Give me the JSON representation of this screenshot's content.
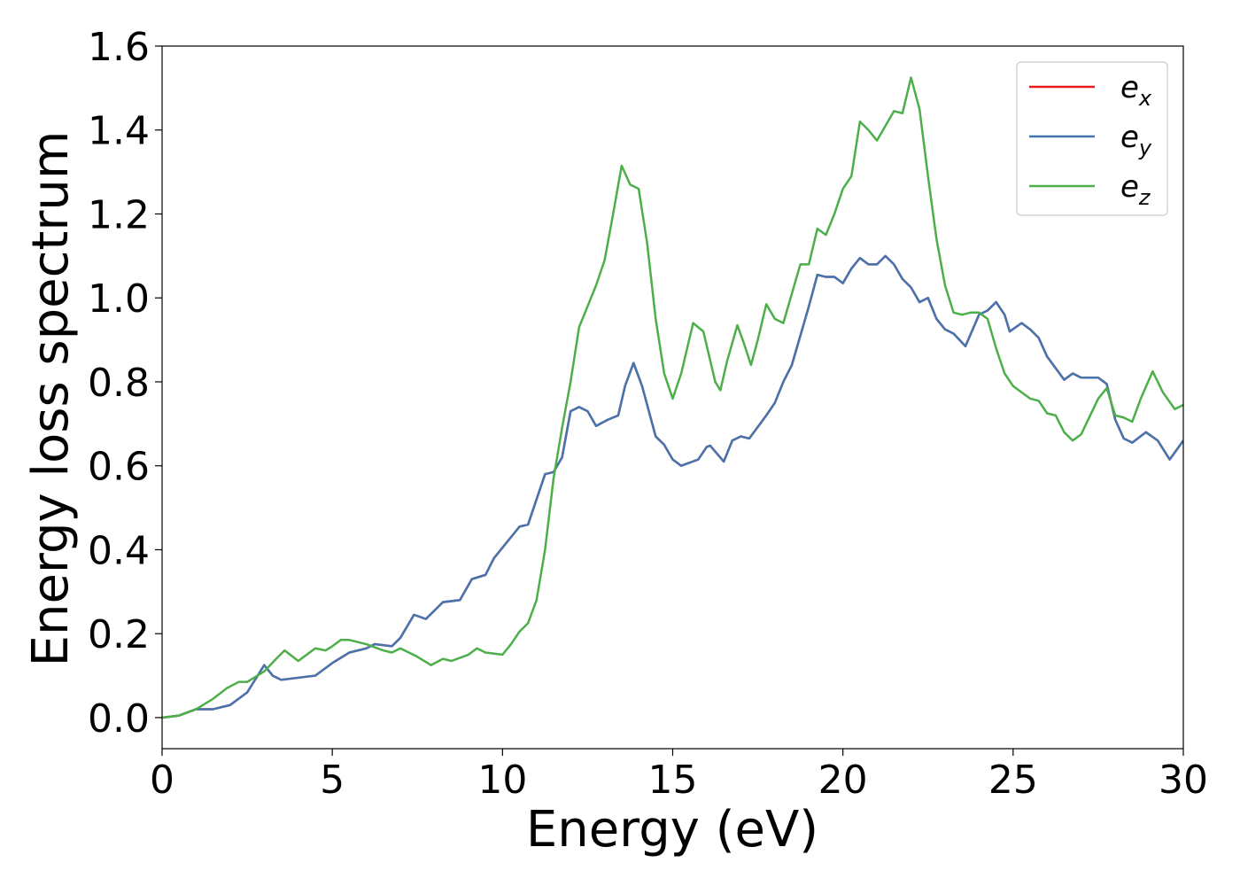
{
  "chart_data": {
    "type": "line",
    "xlabel": "Energy (eV)",
    "ylabel": "Energy loss spectrum",
    "xlim": [
      0,
      30
    ],
    "ylim": [
      -0.074,
      1.6
    ],
    "xticks": [
      0,
      5,
      10,
      15,
      20,
      25,
      30
    ],
    "yticks": [
      {
        "value": 0,
        "label": "0.0"
      },
      0.2,
      0.4,
      0.6,
      0.8,
      {
        "value": 1,
        "label": "1.0"
      },
      1.2,
      1.4,
      1.6
    ],
    "legend": "upper right",
    "series": [
      {
        "name": "e_x",
        "color": "#e41a1c",
        "x": [
          0,
          0.5,
          1,
          1.5,
          2,
          2.5,
          3,
          3.25,
          3.5,
          4,
          4.5,
          5,
          5.5,
          6,
          6.25,
          6.75,
          7,
          7.4,
          7.75,
          8.25,
          8.75,
          9.1,
          9.5,
          9.75,
          10.25,
          10.5,
          10.75,
          11.25,
          11.5,
          11.75,
          12,
          12.25,
          12.5,
          12.75,
          13.1,
          13.4,
          13.6,
          13.85,
          14.1,
          14.5,
          14.75,
          15,
          15.25,
          15.75,
          16,
          16.1,
          16.5,
          16.75,
          17,
          17.25,
          17.75,
          18,
          18.25,
          18.5,
          19,
          19.25,
          19.5,
          19.75,
          20,
          20.25,
          20.5,
          20.75,
          21,
          21.25,
          21.5,
          21.75,
          22,
          22.25,
          22.5,
          22.75,
          23,
          23.25,
          23.6,
          24,
          24.25,
          24.5,
          24.75,
          24.9,
          25.25,
          25.5,
          25.75,
          26,
          26.5,
          26.75,
          27,
          27.5,
          27.75,
          28,
          28.25,
          28.5,
          28.9,
          29.25,
          29.6,
          30
        ],
        "values": [
          0,
          0.005,
          0.02,
          0.02,
          0.03,
          0.06,
          0.125,
          0.1,
          0.09,
          0.095,
          0.1,
          0.13,
          0.155,
          0.165,
          0.175,
          0.17,
          0.19,
          0.245,
          0.235,
          0.275,
          0.28,
          0.33,
          0.34,
          0.38,
          0.43,
          0.455,
          0.46,
          0.58,
          0.585,
          0.62,
          0.73,
          0.74,
          0.73,
          0.695,
          0.71,
          0.72,
          0.79,
          0.845,
          0.79,
          0.67,
          0.65,
          0.615,
          0.6,
          0.615,
          0.645,
          0.648,
          0.61,
          0.66,
          0.67,
          0.665,
          0.72,
          0.75,
          0.8,
          0.84,
          0.98,
          1.055,
          1.05,
          1.05,
          1.035,
          1.07,
          1.095,
          1.08,
          1.08,
          1.1,
          1.08,
          1.045,
          1.025,
          0.99,
          1,
          0.95,
          0.925,
          0.915,
          0.885,
          0.96,
          0.97,
          0.99,
          0.96,
          0.92,
          0.94,
          0.925,
          0.905,
          0.86,
          0.805,
          0.82,
          0.81,
          0.81,
          0.795,
          0.71,
          0.665,
          0.655,
          0.68,
          0.66,
          0.615,
          0.66
        ]
      },
      {
        "name": "e_y",
        "color": "#4575b0",
        "x": [
          0,
          0.5,
          1,
          1.5,
          2,
          2.5,
          3,
          3.25,
          3.5,
          4,
          4.5,
          5,
          5.5,
          6,
          6.25,
          6.75,
          7,
          7.4,
          7.75,
          8.25,
          8.75,
          9.1,
          9.5,
          9.75,
          10.25,
          10.5,
          10.75,
          11.25,
          11.5,
          11.75,
          12,
          12.25,
          12.5,
          12.75,
          13.1,
          13.4,
          13.6,
          13.85,
          14.1,
          14.5,
          14.75,
          15,
          15.25,
          15.75,
          16,
          16.1,
          16.5,
          16.75,
          17,
          17.25,
          17.75,
          18,
          18.25,
          18.5,
          19,
          19.25,
          19.5,
          19.75,
          20,
          20.25,
          20.5,
          20.75,
          21,
          21.25,
          21.5,
          21.75,
          22,
          22.25,
          22.5,
          22.75,
          23,
          23.25,
          23.6,
          24,
          24.25,
          24.5,
          24.75,
          24.9,
          25.25,
          25.5,
          25.75,
          26,
          26.5,
          26.75,
          27,
          27.5,
          27.75,
          28,
          28.25,
          28.5,
          28.9,
          29.25,
          29.6,
          30
        ],
        "values": [
          0,
          0.005,
          0.02,
          0.02,
          0.03,
          0.06,
          0.125,
          0.1,
          0.09,
          0.095,
          0.1,
          0.13,
          0.155,
          0.165,
          0.175,
          0.17,
          0.19,
          0.245,
          0.235,
          0.275,
          0.28,
          0.33,
          0.34,
          0.38,
          0.43,
          0.455,
          0.46,
          0.58,
          0.585,
          0.62,
          0.73,
          0.74,
          0.73,
          0.695,
          0.71,
          0.72,
          0.79,
          0.845,
          0.79,
          0.67,
          0.65,
          0.615,
          0.6,
          0.615,
          0.645,
          0.648,
          0.61,
          0.66,
          0.67,
          0.665,
          0.72,
          0.75,
          0.8,
          0.84,
          0.98,
          1.055,
          1.05,
          1.05,
          1.035,
          1.07,
          1.095,
          1.08,
          1.08,
          1.1,
          1.08,
          1.045,
          1.025,
          0.99,
          1,
          0.95,
          0.925,
          0.915,
          0.885,
          0.96,
          0.97,
          0.99,
          0.96,
          0.92,
          0.94,
          0.925,
          0.905,
          0.86,
          0.805,
          0.82,
          0.81,
          0.81,
          0.795,
          0.71,
          0.665,
          0.655,
          0.68,
          0.66,
          0.615,
          0.66
        ]
      },
      {
        "name": "e_z",
        "color": "#4daf4a",
        "x": [
          0,
          0.5,
          1,
          1.5,
          1.9,
          2.25,
          2.5,
          3,
          3.35,
          3.6,
          4,
          4.5,
          4.8,
          5,
          5.25,
          5.5,
          6,
          6.5,
          6.75,
          7,
          7.5,
          7.9,
          8.25,
          8.5,
          9,
          9.25,
          9.5,
          10,
          10.25,
          10.5,
          10.75,
          11,
          11.25,
          11.5,
          11.75,
          12,
          12.25,
          12.5,
          12.75,
          13,
          13.25,
          13.5,
          13.75,
          14,
          14.25,
          14.5,
          14.75,
          15,
          15.25,
          15.6,
          15.9,
          16.25,
          16.4,
          16.6,
          16.9,
          17.1,
          17.3,
          17.5,
          17.75,
          18,
          18.25,
          18.75,
          19,
          19.25,
          19.5,
          19.75,
          20,
          20.25,
          20.5,
          20.75,
          21,
          21.25,
          21.5,
          21.75,
          22,
          22.25,
          22.5,
          22.75,
          23,
          23.25,
          23.5,
          23.75,
          24,
          24.25,
          24.5,
          24.75,
          25,
          25.5,
          25.75,
          26,
          26.25,
          26.5,
          26.75,
          27,
          27.5,
          27.75,
          28,
          28.25,
          28.5,
          28.75,
          29.1,
          29.4,
          29.75,
          30
        ],
        "values": [
          0,
          0.005,
          0.02,
          0.045,
          0.07,
          0.085,
          0.085,
          0.11,
          0.14,
          0.16,
          0.135,
          0.165,
          0.16,
          0.17,
          0.185,
          0.185,
          0.175,
          0.16,
          0.155,
          0.165,
          0.145,
          0.125,
          0.14,
          0.135,
          0.15,
          0.165,
          0.155,
          0.15,
          0.175,
          0.205,
          0.225,
          0.28,
          0.4,
          0.57,
          0.69,
          0.8,
          0.93,
          0.98,
          1.03,
          1.09,
          1.2,
          1.315,
          1.27,
          1.26,
          1.13,
          0.95,
          0.82,
          0.76,
          0.82,
          0.94,
          0.92,
          0.8,
          0.78,
          0.85,
          0.935,
          0.89,
          0.84,
          0.9,
          0.985,
          0.95,
          0.94,
          1.08,
          1.08,
          1.165,
          1.15,
          1.2,
          1.26,
          1.29,
          1.42,
          1.4,
          1.375,
          1.41,
          1.445,
          1.44,
          1.525,
          1.45,
          1.29,
          1.14,
          1.03,
          0.965,
          0.96,
          0.965,
          0.965,
          0.95,
          0.88,
          0.82,
          0.79,
          0.76,
          0.755,
          0.725,
          0.72,
          0.68,
          0.66,
          0.675,
          0.76,
          0.785,
          0.72,
          0.715,
          0.705,
          0.76,
          0.825,
          0.775,
          0.735,
          0.745
        ]
      }
    ]
  }
}
